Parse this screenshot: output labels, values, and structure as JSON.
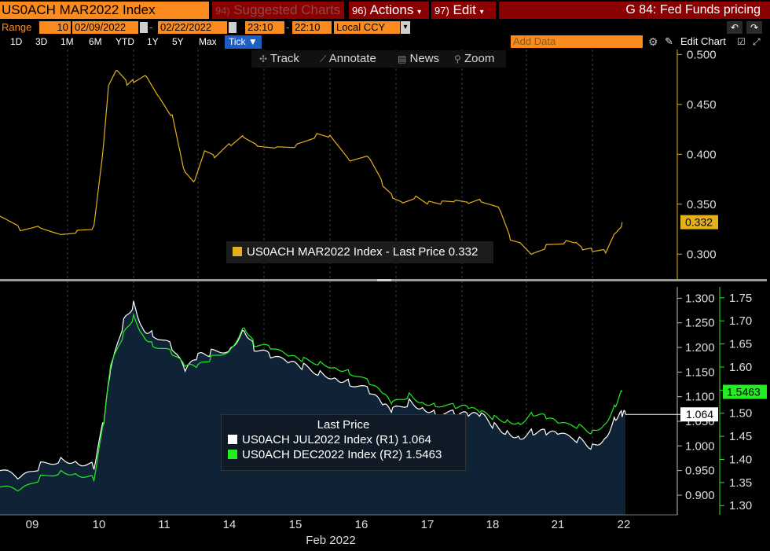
{
  "header": {
    "ticker": "US0ACH MAR2022 Index",
    "suggested_charts": "Suggested Charts",
    "suggested_num": "94",
    "actions_num": "96)",
    "actions": "Actions",
    "edit_num": "97)",
    "edit": "Edit",
    "chart_title": "G 84: Fed Funds pricing"
  },
  "range_bar": {
    "range_label": "Range",
    "count": "10",
    "start_date": "02/09/2022",
    "end_date": "02/22/2022",
    "start_time": "23:10",
    "end_time": "22:10",
    "currency": "Local CCY"
  },
  "periods": [
    "1D",
    "3D",
    "1M",
    "6M",
    "YTD",
    "1Y",
    "5Y",
    "Max",
    "Tick ▼"
  ],
  "active_period_index": 8,
  "add_data_placeholder": "Add Data",
  "edit_chart": "Edit Chart",
  "chart_toolbar": [
    "Track",
    "Annotate",
    "News",
    "Zoom"
  ],
  "colors": {
    "orange": "#fb8b1e",
    "dark_red": "#8b0000",
    "active_blue": "#1e5fc3",
    "mar_line": "#e3b21b",
    "jul_line": "#ffffff",
    "dec_line": "#22ee22",
    "area": "#0f2236"
  },
  "chart_data": [
    {
      "type": "line",
      "series": [
        {
          "name": "US0ACH MAR2022 Index - Last Price 0.332",
          "x_days": [
            0.0,
            0.3,
            0.6,
            0.9,
            1.15,
            1.4,
            1.55,
            1.62,
            1.75,
            1.9,
            2.0,
            2.2,
            2.4,
            2.6,
            2.8,
            2.95,
            3.1,
            3.25,
            3.5,
            3.7,
            3.9,
            4.2,
            4.5,
            4.8,
            5.0,
            5.3,
            5.6,
            5.8,
            5.95,
            6.1,
            6.3,
            6.5,
            6.7,
            6.9,
            7.1,
            7.3,
            7.6,
            7.75,
            7.9,
            8.1,
            8.3,
            8.6,
            8.75,
            8.85,
            9.0,
            9.2,
            9.35,
            9.45
          ],
          "values": [
            0.338,
            0.326,
            0.33,
            0.323,
            0.325,
            0.327,
            0.41,
            0.465,
            0.482,
            0.47,
            0.475,
            0.482,
            0.46,
            0.44,
            0.38,
            0.37,
            0.4,
            0.395,
            0.41,
            0.42,
            0.412,
            0.41,
            0.41,
            0.418,
            0.415,
            0.39,
            0.395,
            0.37,
            0.36,
            0.355,
            0.36,
            0.352,
            0.35,
            0.35,
            0.348,
            0.352,
            0.345,
            0.318,
            0.315,
            0.302,
            0.308,
            0.31,
            0.308,
            0.302,
            0.303,
            0.304,
            0.325,
            0.332
          ]
        }
      ],
      "ylim": [
        0.275,
        0.505
      ],
      "yticks": [
        "0.500",
        "0.450",
        "0.400",
        "0.350",
        "0.300"
      ],
      "last_value_label": "0.332"
    },
    {
      "type": "area",
      "x_labels": [
        "09",
        "10",
        "11",
        "14",
        "15",
        "16",
        "17",
        "18",
        "21",
        "22"
      ],
      "x_title": "Feb 2022",
      "series": [
        {
          "name": "US0ACH JUL2022 Index (R1) 1.064",
          "axis": "left",
          "x_days": [
            0.0,
            0.3,
            0.6,
            0.9,
            1.15,
            1.4,
            1.55,
            1.65,
            1.85,
            2.0,
            2.15,
            2.3,
            2.6,
            2.8,
            3.0,
            3.2,
            3.5,
            3.7,
            3.85,
            4.1,
            4.4,
            4.6,
            4.85,
            5.1,
            5.3,
            5.6,
            5.8,
            5.95,
            6.2,
            6.4,
            6.6,
            6.9,
            7.1,
            7.3,
            7.5,
            7.7,
            7.9,
            8.1,
            8.3,
            8.5,
            8.8,
            9.0,
            9.2,
            9.35,
            9.45,
            9.5
          ],
          "values": [
            0.95,
            0.93,
            0.96,
            0.975,
            0.97,
            0.96,
            1.05,
            1.15,
            1.25,
            1.29,
            1.24,
            1.23,
            1.2,
            1.15,
            1.18,
            1.19,
            1.2,
            1.24,
            1.2,
            1.18,
            1.165,
            1.16,
            1.15,
            1.14,
            1.13,
            1.11,
            1.08,
            1.07,
            1.09,
            1.08,
            1.07,
            1.065,
            1.06,
            1.06,
            1.04,
            1.03,
            1.02,
            1.03,
            1.025,
            1.02,
            1.01,
            1.0,
            1.02,
            1.06,
            1.064,
            1.064
          ]
        },
        {
          "name": "US0ACH DEC2022 Index (R2) 1.5463",
          "axis": "right",
          "x_days": [
            0.0,
            0.3,
            0.6,
            0.9,
            1.15,
            1.4,
            1.55,
            1.65,
            1.85,
            2.0,
            2.15,
            2.3,
            2.6,
            2.8,
            3.0,
            3.2,
            3.5,
            3.7,
            3.85,
            4.1,
            4.4,
            4.6,
            4.85,
            5.1,
            5.3,
            5.6,
            5.8,
            5.95,
            6.2,
            6.4,
            6.6,
            6.9,
            7.1,
            7.3,
            7.5,
            7.7,
            7.9,
            8.1,
            8.3,
            8.5,
            8.8,
            9.0,
            9.2,
            9.35,
            9.45
          ],
          "values": [
            1.34,
            1.33,
            1.36,
            1.375,
            1.37,
            1.36,
            1.48,
            1.6,
            1.67,
            1.71,
            1.67,
            1.65,
            1.63,
            1.6,
            1.6,
            1.62,
            1.64,
            1.69,
            1.65,
            1.64,
            1.62,
            1.615,
            1.61,
            1.6,
            1.59,
            1.565,
            1.54,
            1.52,
            1.54,
            1.525,
            1.52,
            1.515,
            1.51,
            1.5,
            1.49,
            1.485,
            1.48,
            1.5,
            1.49,
            1.475,
            1.47,
            1.46,
            1.48,
            1.52,
            1.5463
          ]
        }
      ],
      "ylim_left": [
        0.86,
        1.315
      ],
      "yticks_left": [
        "1.300",
        "1.250",
        "1.200",
        "1.150",
        "1.100",
        "1.050",
        "1.000",
        "0.950",
        "0.900"
      ],
      "ylim_right": [
        1.28,
        1.765
      ],
      "yticks_right": [
        "1.75",
        "1.70",
        "1.65",
        "1.60",
        "1.55",
        "1.50",
        "1.45",
        "1.40",
        "1.35",
        "1.30"
      ],
      "last_value_left": "1.064",
      "last_value_right": "1.5463",
      "legend_title": "Last Price"
    }
  ]
}
